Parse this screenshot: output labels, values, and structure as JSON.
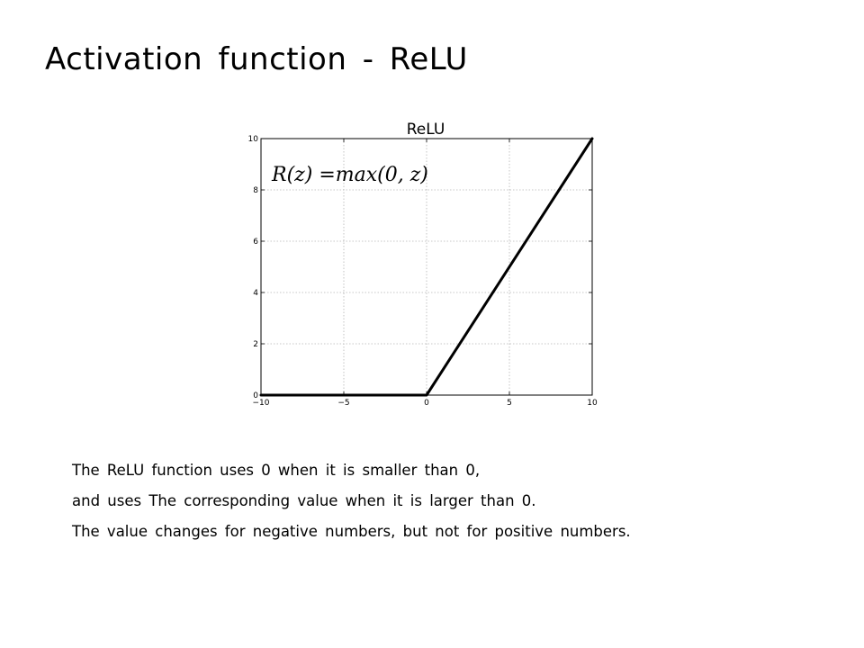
{
  "slide": {
    "title": "Activation function - ReLU",
    "body_lines": [
      "The ReLU function uses 0 when it is smaller than 0,",
      "and uses The corresponding value when it is larger than 0.",
      "The value changes for negative numbers, but not for positive numbers."
    ]
  },
  "chart_data": {
    "type": "line",
    "title": "ReLU",
    "annotation": "R(z) =max(0,  z)",
    "x": [
      -10,
      0,
      10
    ],
    "series": [
      {
        "values": [
          0,
          0,
          10
        ],
        "color": "#000000"
      }
    ],
    "xlim": [
      -10,
      10
    ],
    "ylim": [
      0,
      10
    ],
    "xticks": [
      -10,
      -5,
      0,
      5,
      10
    ],
    "xtick_labels": [
      "−10",
      "−5",
      "0",
      "5",
      "10"
    ],
    "yticks": [
      0,
      2,
      4,
      6,
      8,
      10
    ],
    "ytick_labels": [
      "0",
      "2",
      "4",
      "6",
      "8",
      "10"
    ],
    "grid": true,
    "legend": "none"
  }
}
